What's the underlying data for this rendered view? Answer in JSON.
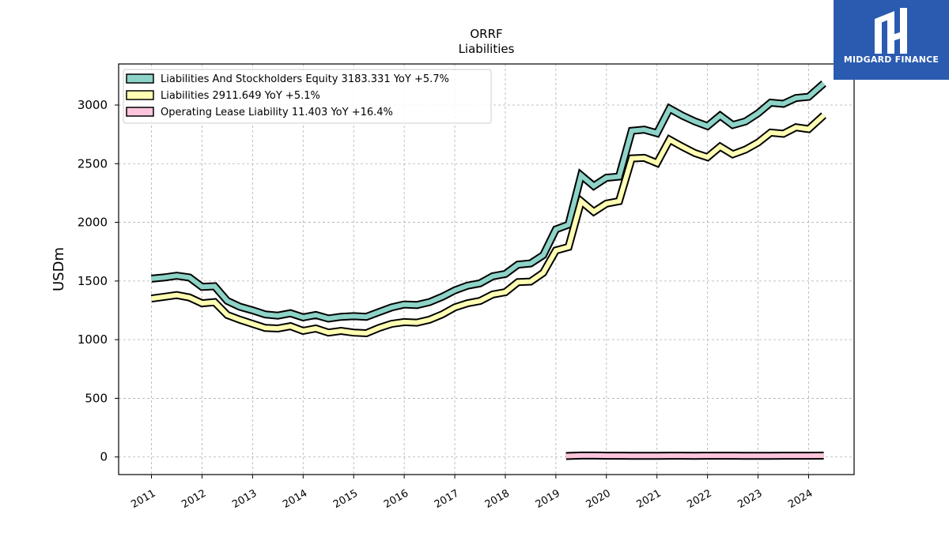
{
  "title": "ORRF",
  "subtitle": "Liabilities",
  "brand": {
    "name": "MIDGARD FINANCE",
    "logo_icon": "midgard-logo-icon",
    "background": "#2a5bb0"
  },
  "chart_data": {
    "type": "line",
    "ylabel": "USDm",
    "xlabel": "",
    "ylim": [
      -150,
      3350
    ],
    "xlim": [
      2010.35,
      2024.9
    ],
    "yticks": [
      0,
      500,
      1000,
      1500,
      2000,
      2500,
      3000
    ],
    "xticks": [
      "2011",
      "2012",
      "2013",
      "2014",
      "2015",
      "2016",
      "2017",
      "2018",
      "2019",
      "2020",
      "2021",
      "2022",
      "2023",
      "2024"
    ],
    "grid": true,
    "legend_position": "top-left",
    "series": [
      {
        "name": "Liabilities And Stockholders Equity",
        "legend_text": "Liabilities And Stockholders Equity  3183.331 YoY +5.7%",
        "color": "#8dd3c7",
        "points": [
          [
            2011.0,
            1520
          ],
          [
            2011.25,
            1530
          ],
          [
            2011.5,
            1545
          ],
          [
            2011.75,
            1530
          ],
          [
            2012.0,
            1450
          ],
          [
            2012.25,
            1455
          ],
          [
            2012.5,
            1330
          ],
          [
            2012.75,
            1280
          ],
          [
            2013.0,
            1250
          ],
          [
            2013.25,
            1215
          ],
          [
            2013.5,
            1205
          ],
          [
            2013.75,
            1225
          ],
          [
            2014.0,
            1190
          ],
          [
            2014.25,
            1210
          ],
          [
            2014.5,
            1180
          ],
          [
            2014.75,
            1195
          ],
          [
            2015.0,
            1200
          ],
          [
            2015.25,
            1195
          ],
          [
            2015.5,
            1235
          ],
          [
            2015.75,
            1275
          ],
          [
            2016.0,
            1300
          ],
          [
            2016.25,
            1295
          ],
          [
            2016.5,
            1320
          ],
          [
            2016.75,
            1365
          ],
          [
            2017.0,
            1420
          ],
          [
            2017.25,
            1460
          ],
          [
            2017.5,
            1480
          ],
          [
            2017.75,
            1540
          ],
          [
            2018.0,
            1560
          ],
          [
            2018.25,
            1640
          ],
          [
            2018.5,
            1650
          ],
          [
            2018.75,
            1720
          ],
          [
            2019.0,
            1940
          ],
          [
            2019.25,
            1980
          ],
          [
            2019.5,
            2400
          ],
          [
            2019.75,
            2310
          ],
          [
            2020.0,
            2380
          ],
          [
            2020.25,
            2390
          ],
          [
            2020.5,
            2780
          ],
          [
            2020.75,
            2790
          ],
          [
            2021.0,
            2760
          ],
          [
            2021.25,
            2970
          ],
          [
            2021.5,
            2910
          ],
          [
            2021.75,
            2860
          ],
          [
            2022.0,
            2820
          ],
          [
            2022.25,
            2910
          ],
          [
            2022.5,
            2830
          ],
          [
            2022.75,
            2860
          ],
          [
            2023.0,
            2930
          ],
          [
            2023.25,
            3020
          ],
          [
            2023.5,
            3010
          ],
          [
            2023.75,
            3060
          ],
          [
            2024.0,
            3070
          ],
          [
            2024.3,
            3183.331
          ]
        ]
      },
      {
        "name": "Liabilities",
        "legend_text": "Liabilities  2911.649 YoY +5.1%",
        "color": "#ffffb3",
        "points": [
          [
            2011.0,
            1350
          ],
          [
            2011.25,
            1365
          ],
          [
            2011.5,
            1380
          ],
          [
            2011.75,
            1360
          ],
          [
            2012.0,
            1310
          ],
          [
            2012.25,
            1320
          ],
          [
            2012.5,
            1210
          ],
          [
            2012.75,
            1170
          ],
          [
            2013.0,
            1135
          ],
          [
            2013.25,
            1100
          ],
          [
            2013.5,
            1095
          ],
          [
            2013.75,
            1115
          ],
          [
            2014.0,
            1075
          ],
          [
            2014.25,
            1095
          ],
          [
            2014.5,
            1060
          ],
          [
            2014.75,
            1075
          ],
          [
            2015.0,
            1060
          ],
          [
            2015.25,
            1055
          ],
          [
            2015.5,
            1100
          ],
          [
            2015.75,
            1135
          ],
          [
            2016.0,
            1150
          ],
          [
            2016.25,
            1145
          ],
          [
            2016.5,
            1170
          ],
          [
            2016.75,
            1215
          ],
          [
            2017.0,
            1275
          ],
          [
            2017.25,
            1310
          ],
          [
            2017.5,
            1330
          ],
          [
            2017.75,
            1385
          ],
          [
            2018.0,
            1405
          ],
          [
            2018.25,
            1490
          ],
          [
            2018.5,
            1495
          ],
          [
            2018.75,
            1570
          ],
          [
            2019.0,
            1760
          ],
          [
            2019.25,
            1790
          ],
          [
            2019.5,
            2180
          ],
          [
            2019.75,
            2090
          ],
          [
            2020.0,
            2160
          ],
          [
            2020.25,
            2180
          ],
          [
            2020.5,
            2545
          ],
          [
            2020.75,
            2550
          ],
          [
            2021.0,
            2505
          ],
          [
            2021.25,
            2705
          ],
          [
            2021.5,
            2645
          ],
          [
            2021.75,
            2590
          ],
          [
            2022.0,
            2555
          ],
          [
            2022.25,
            2645
          ],
          [
            2022.5,
            2580
          ],
          [
            2022.75,
            2620
          ],
          [
            2023.0,
            2680
          ],
          [
            2023.25,
            2765
          ],
          [
            2023.5,
            2755
          ],
          [
            2023.75,
            2810
          ],
          [
            2024.0,
            2795
          ],
          [
            2024.3,
            2911.649
          ]
        ]
      },
      {
        "name": "Operating Lease Liability",
        "legend_text": "Operating Lease Liability  11.403 YoY +16.4%",
        "color": "#fcc5dc",
        "points": [
          [
            2019.2,
            8
          ],
          [
            2019.5,
            12
          ],
          [
            2019.75,
            12
          ],
          [
            2020.0,
            11
          ],
          [
            2020.25,
            11
          ],
          [
            2020.5,
            10
          ],
          [
            2020.75,
            10
          ],
          [
            2021.0,
            10
          ],
          [
            2021.25,
            11
          ],
          [
            2021.5,
            11
          ],
          [
            2021.75,
            10
          ],
          [
            2022.0,
            11
          ],
          [
            2022.25,
            11
          ],
          [
            2022.5,
            11
          ],
          [
            2022.75,
            10
          ],
          [
            2023.0,
            10
          ],
          [
            2023.25,
            10
          ],
          [
            2023.5,
            11
          ],
          [
            2023.75,
            11
          ],
          [
            2024.0,
            11
          ],
          [
            2024.3,
            11.403
          ]
        ]
      }
    ]
  }
}
